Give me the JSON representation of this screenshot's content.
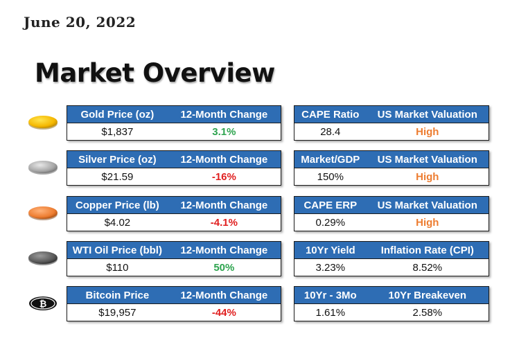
{
  "date": "June 20, 2022",
  "title": "Market Overview",
  "colors": {
    "header_bg": "#2e6db4",
    "positive": "#2ea44f",
    "negative": "#e02020",
    "high": "#ed7d31",
    "gold": "#f5b800",
    "silver": "#a6a6a6",
    "copper": "#ed7d31",
    "oil": "#595959"
  },
  "rows": [
    {
      "icon": "gold-coin-icon",
      "left": {
        "h1": "Gold Price (oz)",
        "h2": "12-Month Change",
        "v1": "$1,837",
        "v2": "3.1%"
      },
      "right": {
        "h1": "CAPE Ratio",
        "h2": "US Market Valuation",
        "v1": "28.4",
        "v2": "High"
      }
    },
    {
      "icon": "silver-coin-icon",
      "left": {
        "h1": "Silver Price (oz)",
        "h2": "12-Month Change",
        "v1": "$21.59",
        "v2": "-16%"
      },
      "right": {
        "h1": "Market/GDP",
        "h2": "US Market Valuation",
        "v1": "150%",
        "v2": "High"
      }
    },
    {
      "icon": "copper-coin-icon",
      "left": {
        "h1": "Copper Price (lb)",
        "h2": "12-Month Change",
        "v1": "$4.02",
        "v2": "-4.1%"
      },
      "right": {
        "h1": "CAPE ERP",
        "h2": "US Market Valuation",
        "v1": "0.29%",
        "v2": "High"
      }
    },
    {
      "icon": "oil-drop-icon",
      "left": {
        "h1": "WTI Oil Price (bbl)",
        "h2": "12-Month Change",
        "v1": "$110",
        "v2": "50%"
      },
      "right": {
        "h1": "10Yr Yield",
        "h2": "Inflation Rate (CPI)",
        "v1": "3.23%",
        "v2": "8.52%"
      }
    },
    {
      "icon": "bitcoin-icon",
      "left": {
        "h1": "Bitcoin Price",
        "h2": "12-Month Change",
        "v1": "$19,957",
        "v2": "-44%"
      },
      "right": {
        "h1": "10Yr - 3Mo",
        "h2": "10Yr Breakeven",
        "v1": "1.61%",
        "v2": "2.58%"
      }
    }
  ]
}
